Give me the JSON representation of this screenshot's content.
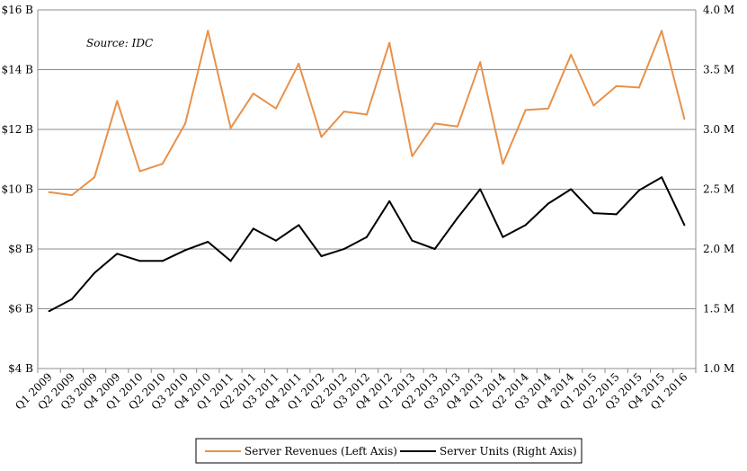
{
  "chart_data": {
    "type": "line",
    "source_note": "Source: IDC",
    "categories": [
      "Q1 2009",
      "Q2 2009",
      "Q3 2009",
      "Q4 2009",
      "Q1 2010",
      "Q2 2010",
      "Q3 2010",
      "Q4 2010",
      "Q1 2011",
      "Q2 2011",
      "Q3 2011",
      "Q4 2011",
      "Q1 2012",
      "Q2 2012",
      "Q3 2012",
      "Q4 2012",
      "Q1 2013",
      "Q2 2013",
      "Q3 2013",
      "Q4 2013",
      "Q1 2014",
      "Q2 2014",
      "Q3 2014",
      "Q4 2014",
      "Q1 2015",
      "Q2 2015",
      "Q3 2015",
      "Q4 2015",
      "Q1 2016"
    ],
    "left_axis": {
      "ticks": [
        "$4 B",
        "$6 B",
        "$8 B",
        "$10 B",
        "$12 B",
        "$14 B",
        "$16 B"
      ],
      "ylim": [
        4,
        16
      ]
    },
    "right_axis": {
      "ticks": [
        "1.0 M",
        "1.5 M",
        "2.0 M",
        "2.5 M",
        "3.0 M",
        "3.5 M",
        "4.0 M"
      ],
      "ylim": [
        1.0,
        4.0
      ]
    },
    "grid": "horizontal",
    "legend_position": "bottom",
    "series": [
      {
        "name": "Server Revenues (Left Axis)",
        "axis": "left",
        "color": "#E8914A",
        "values": [
          9.9,
          9.8,
          10.4,
          12.95,
          10.6,
          10.85,
          12.2,
          15.3,
          12.05,
          13.2,
          12.7,
          14.2,
          11.75,
          12.6,
          12.5,
          14.9,
          11.1,
          12.2,
          12.1,
          14.25,
          10.85,
          12.65,
          12.7,
          14.5,
          12.8,
          13.45,
          13.4,
          15.3,
          12.35
        ]
      },
      {
        "name": "Server Units (Right Axis)",
        "axis": "right",
        "color": "#000000",
        "values": [
          1.48,
          1.58,
          1.8,
          1.96,
          1.9,
          1.9,
          1.99,
          2.06,
          1.9,
          2.17,
          2.07,
          2.2,
          1.94,
          2.0,
          2.1,
          2.4,
          2.07,
          2.0,
          2.26,
          2.5,
          2.1,
          2.2,
          2.38,
          2.5,
          2.3,
          2.29,
          2.49,
          2.6,
          2.2
        ]
      }
    ]
  }
}
